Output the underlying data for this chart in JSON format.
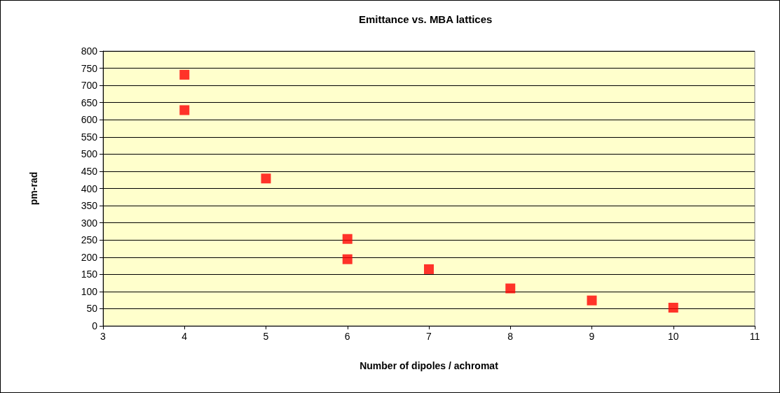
{
  "chart_data": {
    "type": "scatter",
    "title": "Emittance vs. MBA lattices",
    "xlabel": "Number of dipoles / achromat",
    "ylabel": "pm-rad",
    "x": [
      4,
      4,
      5,
      6,
      6,
      7,
      8,
      9,
      10
    ],
    "series": [
      {
        "color": "#ff0000",
        "values": [
          731,
          628,
          429,
          253,
          194,
          165,
          109,
          74,
          53
        ]
      }
    ],
    "xlim": [
      3,
      11
    ],
    "xticks": [
      3,
      4,
      5,
      6,
      7,
      8,
      9,
      10,
      11
    ],
    "ylim": [
      0,
      800
    ],
    "yticks": [
      0,
      50,
      100,
      150,
      200,
      250,
      300,
      350,
      400,
      450,
      500,
      550,
      600,
      650,
      700,
      750,
      800
    ],
    "grid": "y",
    "marker": "square"
  }
}
